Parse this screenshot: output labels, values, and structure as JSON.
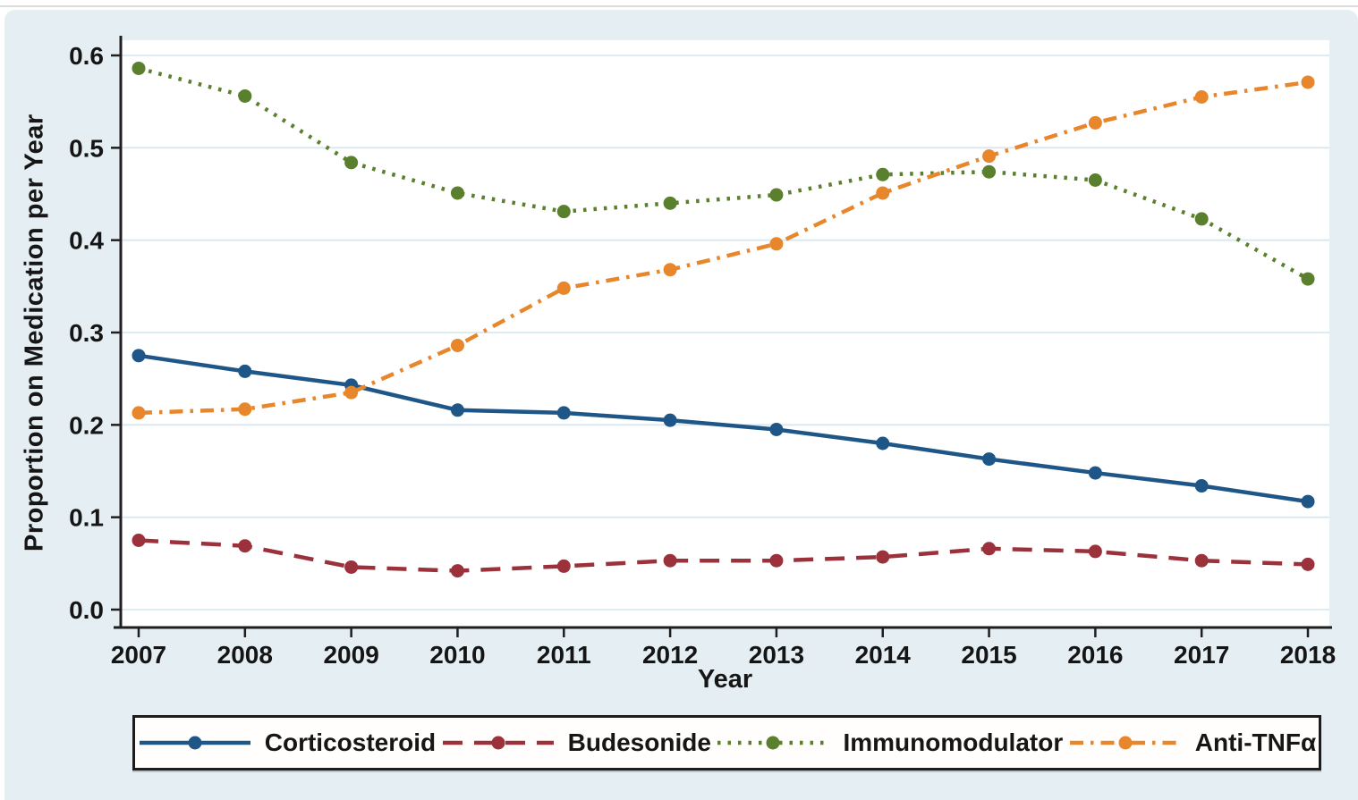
{
  "figure": {
    "x_axis_title": "Year",
    "y_axis_title": "Proportion on Medication per Year"
  },
  "chart_data": {
    "type": "line",
    "title": "",
    "xlabel": "Year",
    "ylabel": "Proportion on Medication per Year",
    "x": [
      2007,
      2008,
      2009,
      2010,
      2011,
      2012,
      2013,
      2014,
      2015,
      2016,
      2017,
      2018
    ],
    "x_tick_labels": [
      "2007",
      "2008",
      "2009",
      "2010",
      "2011",
      "2012",
      "2013",
      "2014",
      "2015",
      "2016",
      "2017",
      "2018"
    ],
    "ylim": [
      0.0,
      0.6
    ],
    "yticks": [
      0.0,
      0.1,
      0.2,
      0.3,
      0.4,
      0.5,
      0.6
    ],
    "y_tick_labels": [
      "0.0",
      "0.1",
      "0.2",
      "0.3",
      "0.4",
      "0.5",
      "0.6"
    ],
    "grid": true,
    "legend_position": "bottom",
    "background_color": "#e5eef2",
    "plot_background_color": "#ffffff",
    "gridline_color": "#d8e8f1",
    "axis_color": "#1f1f1f",
    "series": [
      {
        "name": "Corticosteroid",
        "slug": "corticosteroid",
        "color": "#1f5688",
        "line_style": "solid",
        "marker": "circle",
        "values": [
          0.275,
          0.258,
          0.243,
          0.216,
          0.213,
          0.205,
          0.195,
          0.18,
          0.163,
          0.148,
          0.134,
          0.117
        ]
      },
      {
        "name": "Budesonide",
        "slug": "budesonide",
        "color": "#9b323b",
        "line_style": "dashed",
        "marker": "circle",
        "values": [
          0.075,
          0.069,
          0.046,
          0.042,
          0.047,
          0.053,
          0.053,
          0.057,
          0.066,
          0.063,
          0.053,
          0.049
        ]
      },
      {
        "name": "Immunomodulator",
        "slug": "immunomodulator",
        "color": "#5a7f2d",
        "line_style": "dotted",
        "marker": "circle",
        "values": [
          0.586,
          0.556,
          0.484,
          0.451,
          0.431,
          0.44,
          0.449,
          0.471,
          0.474,
          0.465,
          0.423,
          0.358
        ]
      },
      {
        "name": "Anti-TNFα",
        "slug": "anti-tnfa",
        "color": "#e7862b",
        "line_style": "dash-dot",
        "marker": "circle",
        "values": [
          0.213,
          0.217,
          0.235,
          0.286,
          0.348,
          0.368,
          0.396,
          0.451,
          0.491,
          0.527,
          0.555,
          0.571
        ]
      }
    ]
  }
}
